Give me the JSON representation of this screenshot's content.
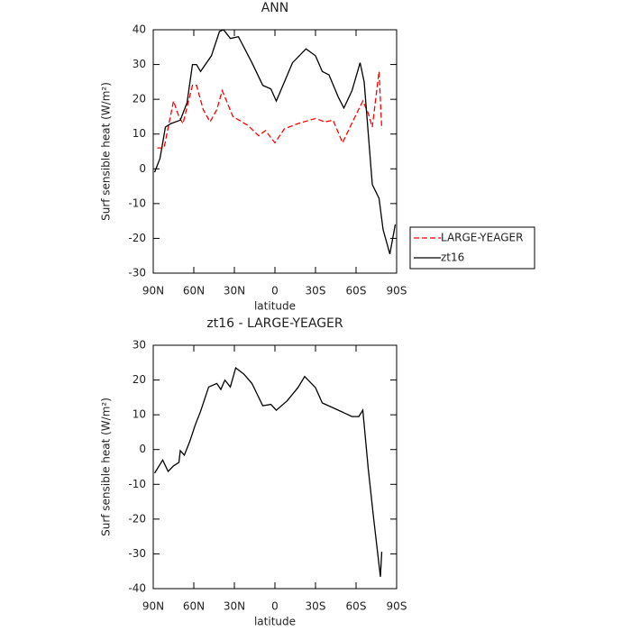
{
  "chart_data": [
    {
      "type": "line",
      "title": "ANN",
      "xlabel": "latitude",
      "ylabel": "Surf sensible heat (W/m²)",
      "xlim": [
        90,
        -90
      ],
      "ylim": [
        -30,
        40
      ],
      "xticks": [
        {
          "value": 90,
          "label": "90N"
        },
        {
          "value": 60,
          "label": "60N"
        },
        {
          "value": 30,
          "label": "30N"
        },
        0,
        {
          "value": -30,
          "label": "30S"
        },
        {
          "value": -60,
          "label": "60S"
        },
        {
          "value": -90,
          "label": "90S"
        }
      ],
      "yticks": [
        -30,
        -20,
        -10,
        0,
        10,
        20,
        30,
        40
      ],
      "legend_position": "outside-right",
      "series": [
        {
          "name": "LARGE-YEAGER",
          "color": "#ff0000",
          "dashed": true,
          "x": [
            87,
            82,
            75,
            71,
            68,
            61,
            58,
            53,
            48,
            43,
            39,
            31,
            20,
            12,
            7,
            0,
            -7,
            -17,
            -30,
            -37,
            -43,
            -50,
            -58,
            -65,
            -69,
            -72,
            -77,
            -79
          ],
          "values": [
            6,
            6,
            19.5,
            15,
            13,
            24,
            24,
            17,
            13.5,
            17,
            22.5,
            15,
            12.5,
            9.5,
            11,
            7.5,
            11.5,
            13,
            14.5,
            13.5,
            14,
            7.5,
            14,
            19.5,
            16,
            12,
            28,
            11.5
          ]
        },
        {
          "name": "zt16",
          "color": "#000000",
          "dashed": false,
          "x": [
            89,
            85,
            81,
            77,
            70,
            65,
            61,
            58,
            55,
            47,
            41,
            38,
            33,
            27,
            17,
            9,
            3,
            -1,
            -7,
            -13,
            -23,
            -30,
            -35,
            -40,
            -47,
            -51,
            -57,
            -63,
            -66,
            -72,
            -77,
            -80,
            -85,
            -89
          ],
          "values": [
            -1,
            3,
            12,
            13,
            14,
            19,
            30,
            30,
            28,
            32.5,
            39.5,
            40,
            37.5,
            38,
            30.5,
            24,
            23,
            19.5,
            25,
            30.5,
            34.5,
            32.5,
            28,
            27,
            20.5,
            17.5,
            22.5,
            30.5,
            25,
            -4.5,
            -8.5,
            -17.5,
            -24.5,
            -16
          ]
        }
      ]
    },
    {
      "type": "line",
      "title": "zt16 - LARGE-YEAGER",
      "xlabel": "latitude",
      "ylabel": "Surf sensible heat (W/m²)",
      "xlim": [
        90,
        -90
      ],
      "ylim": [
        -40,
        30
      ],
      "xticks": [
        {
          "value": 90,
          "label": "90N"
        },
        {
          "value": 60,
          "label": "60N"
        },
        {
          "value": 30,
          "label": "30N"
        },
        0,
        {
          "value": -30,
          "label": "30S"
        },
        {
          "value": -60,
          "label": "60S"
        },
        {
          "value": -90,
          "label": "90S"
        }
      ],
      "yticks": [
        -40,
        -30,
        -20,
        -10,
        0,
        10,
        20,
        30
      ],
      "series": [
        {
          "color": "#000000",
          "dashed": false,
          "x": [
            89,
            83,
            79,
            75,
            71,
            70,
            67,
            63,
            59,
            55,
            49,
            43,
            40,
            37,
            33,
            29,
            23,
            17,
            9,
            3,
            -1,
            -9,
            -17,
            -22,
            -30,
            -35,
            -47,
            -57,
            -62,
            -65,
            -69,
            -73,
            -78,
            -79
          ],
          "values": [
            -6.8,
            -3,
            -6.3,
            -4.7,
            -3.7,
            -0.3,
            -1.6,
            2.3,
            7,
            11,
            18,
            19,
            17.3,
            20,
            18,
            23.5,
            21.7,
            19,
            12.6,
            13,
            11.3,
            14,
            17.8,
            21,
            17.8,
            13.4,
            11.3,
            9.5,
            9.5,
            11.3,
            -5.5,
            -19.8,
            -36.6,
            -29.4
          ]
        }
      ]
    }
  ]
}
